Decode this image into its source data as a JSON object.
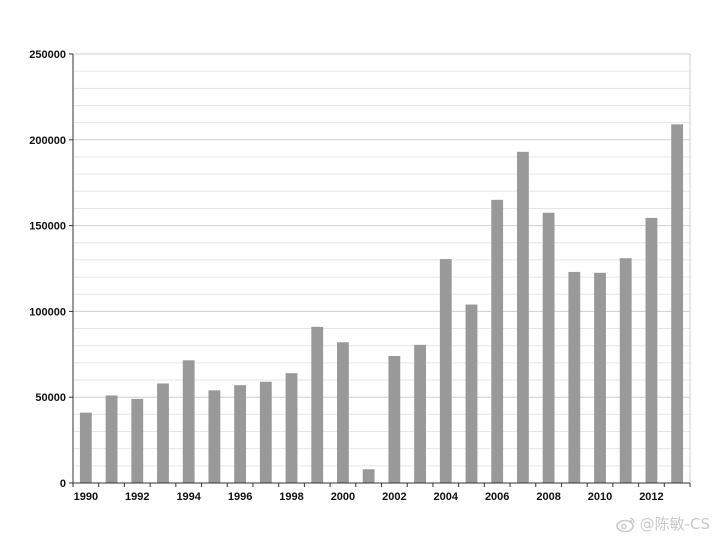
{
  "chart_data": {
    "type": "bar",
    "title": "",
    "xlabel": "",
    "ylabel": "",
    "ylim": [
      0,
      250000
    ],
    "yticks": [
      0,
      50000,
      100000,
      150000,
      200000,
      250000
    ],
    "ytick_labels": [
      "0",
      "50000",
      "100000",
      "150000",
      "200000",
      "250000"
    ],
    "minor_grid_step": 10000,
    "grid": true,
    "legend": "none",
    "x_tick_labels": [
      "1990",
      "1992",
      "1994",
      "1996",
      "1998",
      "2000",
      "2002",
      "2004",
      "2006",
      "2008",
      "2010",
      "2012"
    ],
    "categories": [
      "1990",
      "1991",
      "1992",
      "1993",
      "1994",
      "1995",
      "1996",
      "1997",
      "1998",
      "1999",
      "2000",
      "2001",
      "2002",
      "2003",
      "2004",
      "2005",
      "2006",
      "2007",
      "2008",
      "2009",
      "2010",
      "2011",
      "2012",
      "2013"
    ],
    "values": [
      41000,
      51000,
      49000,
      58000,
      71500,
      54000,
      57000,
      59000,
      64000,
      91000,
      82000,
      8000,
      74000,
      80500,
      130500,
      104000,
      165000,
      193000,
      157500,
      123000,
      122500,
      131000,
      154500,
      209000
    ],
    "bar_color": "#999999"
  },
  "watermark": {
    "text": "@陈敏-CS",
    "icon": "weibo-icon"
  }
}
